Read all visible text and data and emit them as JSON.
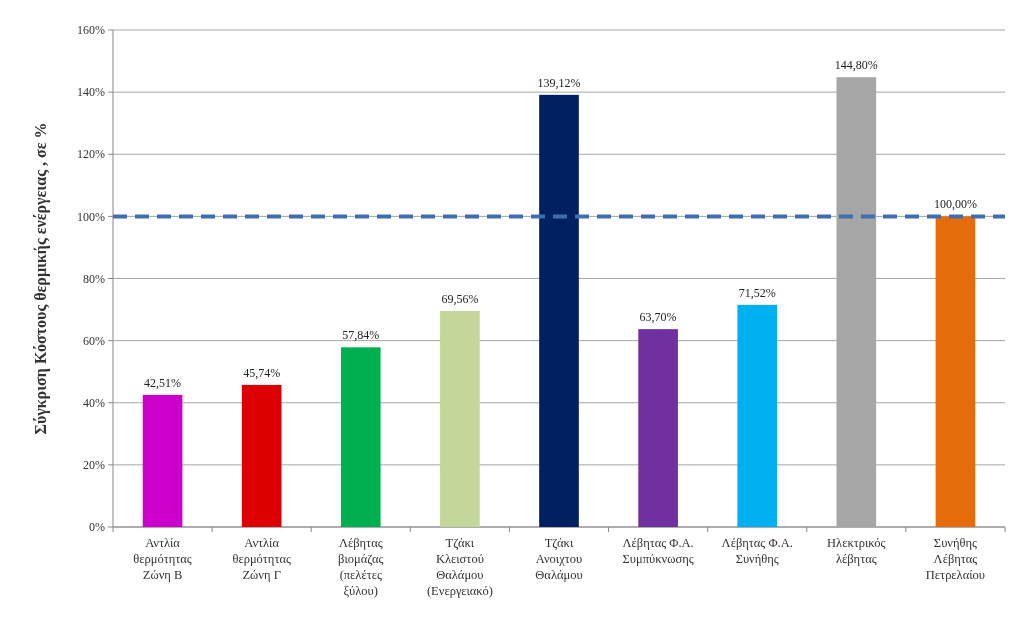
{
  "chart_data": {
    "type": "bar",
    "ylabel": "Σύγκριση Κόστους θερμικής ενέργειας , σε %",
    "categories": [
      "Αντλία\nθερμότητας\nΖώνη Β",
      "Αντλία\nθερμότητας\nΖώνη Γ",
      "Λέβητας\nβιομάζας\n(πελέτες\nξύλου)",
      "Τζάκι\nΚλειστού\nΘαλάμου\n(Ενεργειακό)",
      "Τζάκι\nΑνοιχτου\nΘαλάμου",
      "Λέβητας Φ.Α.\nΣυμπύκνωσης",
      "Λέβητας Φ.Α.\nΣυνήθης",
      "Ηλεκτρικός\nλέβητας",
      "Συνήθης\nΛέβητας\nΠετρελαίου"
    ],
    "values": [
      42.51,
      45.74,
      57.84,
      69.56,
      139.12,
      63.7,
      71.52,
      144.8,
      100.0
    ],
    "value_labels": [
      "42,51%",
      "45,74%",
      "57,84%",
      "69,56%",
      "139,12%",
      "63,70%",
      "71,52%",
      "144,80%",
      "100,00%"
    ],
    "colors": [
      "#cc00cc",
      "#dd0000",
      "#00b050",
      "#c4d79b",
      "#002060",
      "#7030a0",
      "#00b0f0",
      "#a6a6a6",
      "#e46c0a"
    ],
    "ylim": [
      0,
      160
    ],
    "yticks": [
      {
        "value": 0,
        "label": "0%"
      },
      {
        "value": 20,
        "label": "20%"
      },
      {
        "value": 40,
        "label": "40%"
      },
      {
        "value": 60,
        "label": "60%"
      },
      {
        "value": 80,
        "label": "80%"
      },
      {
        "value": 100,
        "label": "100%"
      },
      {
        "value": 120,
        "label": "120%"
      },
      {
        "value": 140,
        "label": "140%"
      },
      {
        "value": 160,
        "label": "160%"
      }
    ],
    "grid": "y",
    "ref_lines": [
      {
        "axis": "y",
        "value": 100,
        "color": "#3f6fb0",
        "line_style": "dashed"
      }
    ]
  }
}
